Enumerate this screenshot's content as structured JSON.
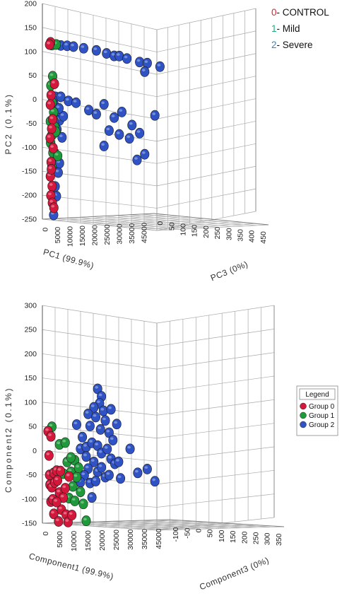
{
  "colors": {
    "group0": "#d4183c",
    "group1": "#1f9a3a",
    "group2": "#2f52c4",
    "legendNum0": "#e8202a",
    "legendNum1": "#1bb07a",
    "legendNum2": "#1f8fd0"
  },
  "chart_data": [
    {
      "type": "scatter",
      "title": "",
      "xlabel": "PC1 (99.9%)",
      "ylabel": "PC2 (0.1%)",
      "zlabel": "PC3 (0%)",
      "ylim": [
        -250,
        200
      ],
      "y_ticks": [
        "200",
        "150",
        "100",
        "50",
        "0",
        "-50",
        "-100",
        "-150",
        "-200",
        "-250"
      ],
      "x_ticks": [
        "0",
        "5000",
        "10000",
        "15000",
        "20000",
        "25000",
        "30000",
        "35000",
        "45000"
      ],
      "z_ticks": [
        "0",
        "50",
        "100",
        "150",
        "200",
        "250",
        "300",
        "350",
        "400",
        "450"
      ],
      "legend": [
        {
          "num": "0",
          "text": "- CONTROL",
          "group": "group0"
        },
        {
          "num": "1",
          "text": "- Mild",
          "group": "group1"
        },
        {
          "num": "2",
          "text": "- Severe",
          "group": "group2"
        }
      ],
      "series": [
        {
          "group": "group0",
          "points": [
            [
              1000,
              120
            ],
            [
              600,
              115
            ],
            [
              2500,
              35
            ],
            [
              1200,
              10
            ],
            [
              900,
              -10
            ],
            [
              1800,
              -40
            ],
            [
              1400,
              -60
            ],
            [
              800,
              -80
            ],
            [
              2000,
              -100
            ],
            [
              1200,
              -130
            ],
            [
              900,
              -160
            ],
            [
              1600,
              -180
            ],
            [
              1100,
              -200
            ],
            [
              1700,
              -215
            ],
            [
              2300,
              -225
            ],
            [
              1300,
              -145
            ]
          ]
        },
        {
          "group": "group1",
          "points": [
            [
              1500,
              115
            ],
            [
              3200,
              118
            ],
            [
              1800,
              50
            ],
            [
              1100,
              30
            ],
            [
              1600,
              -5
            ],
            [
              2200,
              -25
            ],
            [
              900,
              -45
            ],
            [
              2600,
              -55
            ],
            [
              1300,
              -75
            ],
            [
              1900,
              -110
            ],
            [
              3800,
              -115
            ],
            [
              1000,
              -90
            ],
            [
              2100,
              -70
            ],
            [
              1500,
              -140
            ],
            [
              3000,
              -65
            ]
          ]
        },
        {
          "group": "group2",
          "points": [
            [
              5000,
              118
            ],
            [
              7500,
              120
            ],
            [
              10000,
              121
            ],
            [
              14000,
              122
            ],
            [
              19000,
              123
            ],
            [
              23000,
              121
            ],
            [
              26000,
              119
            ],
            [
              28000,
              121
            ],
            [
              31000,
              119
            ],
            [
              36000,
              117
            ],
            [
              39000,
              118
            ],
            [
              44000,
              116
            ],
            [
              38000,
              98
            ],
            [
              3000,
              8
            ],
            [
              5000,
              10
            ],
            [
              8000,
              4
            ],
            [
              11000,
              3
            ],
            [
              16000,
              -8
            ],
            [
              19000,
              -14
            ],
            [
              22000,
              10
            ],
            [
              26000,
              -15
            ],
            [
              29000,
              0
            ],
            [
              33000,
              -25
            ],
            [
              42000,
              5
            ],
            [
              36000,
              -40
            ],
            [
              28000,
              -50
            ],
            [
              32000,
              -55
            ],
            [
              24000,
              -45
            ],
            [
              22000,
              -80
            ],
            [
              38000,
              -85
            ],
            [
              35000,
              -100
            ],
            [
              2500,
              -10
            ],
            [
              3000,
              -30
            ],
            [
              4500,
              -40
            ],
            [
              3500,
              -60
            ],
            [
              2600,
              -110
            ],
            [
              3000,
              -125
            ],
            [
              4000,
              -150
            ],
            [
              2800,
              -180
            ],
            [
              3300,
              -200
            ],
            [
              2200,
              -240
            ],
            [
              4500,
              -130
            ],
            [
              6000,
              -30
            ],
            [
              5500,
              -75
            ],
            [
              2500,
              -45
            ],
            [
              4300,
              -15
            ]
          ]
        }
      ]
    },
    {
      "type": "scatter",
      "title": "",
      "xlabel": "Component1 (99.9%)",
      "ylabel": "Component2 (0.1%)",
      "zlabel": "Component3 (0%)",
      "ylim": [
        -150,
        300
      ],
      "y_ticks": [
        "300",
        "250",
        "200",
        "150",
        "100",
        "50",
        "0",
        "-50",
        "-100",
        "-150"
      ],
      "x_ticks": [
        "0",
        "5000",
        "10000",
        "15000",
        "20000",
        "25000",
        "30000",
        "35000",
        "45000"
      ],
      "z_ticks": [
        "-100",
        "-50",
        "0",
        "50",
        "100",
        "150",
        "200",
        "250",
        "300",
        "350"
      ],
      "legend_title": "Legend",
      "legend": [
        {
          "text": "Group 0",
          "group": "group0"
        },
        {
          "text": "Group 1",
          "group": "group1"
        },
        {
          "text": "Group 2",
          "group": "group2"
        }
      ],
      "series": [
        {
          "group": "group0",
          "points": [
            [
              0,
              40
            ],
            [
              500,
              -10
            ],
            [
              1500,
              30
            ],
            [
              800,
              -50
            ],
            [
              1000,
              -70
            ],
            [
              2000,
              -75
            ],
            [
              1500,
              -105
            ],
            [
              3000,
              -45
            ],
            [
              3500,
              -65
            ],
            [
              4500,
              -40
            ],
            [
              5000,
              -60
            ],
            [
              2500,
              -100
            ],
            [
              3000,
              -130
            ],
            [
              6000,
              -85
            ],
            [
              7000,
              -120
            ],
            [
              8000,
              -95
            ],
            [
              4500,
              -105
            ],
            [
              6500,
              -40
            ],
            [
              9500,
              -130
            ],
            [
              10500,
              -145
            ],
            [
              12500,
              -130
            ],
            [
              11000,
              -50
            ],
            [
              9000,
              -75
            ],
            [
              5500,
              -145
            ]
          ]
        },
        {
          "group": "group1",
          "points": [
            [
              2000,
              50
            ],
            [
              6000,
              15
            ],
            [
              9000,
              20
            ],
            [
              10000,
              -20
            ],
            [
              12000,
              -40
            ],
            [
              14000,
              -15
            ],
            [
              15000,
              -50
            ],
            [
              16000,
              -30
            ],
            [
              13000,
              -70
            ],
            [
              8000,
              -45
            ],
            [
              11000,
              -95
            ],
            [
              17000,
              -80
            ],
            [
              18500,
              -105
            ],
            [
              14000,
              -100
            ],
            [
              20000,
              -140
            ],
            [
              12000,
              -10
            ]
          ]
        },
        {
          "group": "group2",
          "points": [
            [
              26000,
              140
            ],
            [
              28000,
              125
            ],
            [
              27000,
              110
            ],
            [
              29000,
              95
            ],
            [
              24000,
              100
            ],
            [
              21000,
              85
            ],
            [
              22000,
              60
            ],
            [
              25000,
              80
            ],
            [
              30000,
              75
            ],
            [
              32000,
              50
            ],
            [
              27500,
              55
            ],
            [
              34000,
              35
            ],
            [
              18000,
              35
            ],
            [
              17000,
              10
            ],
            [
              20000,
              15
            ],
            [
              23000,
              25
            ],
            [
              26000,
              20
            ],
            [
              28000,
              5
            ],
            [
              31000,
              15
            ],
            [
              33000,
              -5
            ],
            [
              35000,
              -15
            ],
            [
              37000,
              -10
            ],
            [
              24000,
              -15
            ],
            [
              21000,
              -30
            ],
            [
              26000,
              -35
            ],
            [
              28000,
              -25
            ],
            [
              30000,
              -45
            ],
            [
              32000,
              -40
            ],
            [
              38000,
              -45
            ],
            [
              19000,
              -45
            ],
            [
              22000,
              -60
            ],
            [
              17000,
              -60
            ],
            [
              25000,
              -55
            ],
            [
              43000,
              20
            ],
            [
              47000,
              -30
            ],
            [
              52000,
              -20
            ],
            [
              56000,
              -45
            ],
            [
              15000,
              60
            ],
            [
              33000,
              100
            ],
            [
              36000,
              70
            ],
            [
              23000,
              -90
            ],
            [
              20000,
              -5
            ]
          ]
        }
      ]
    }
  ]
}
